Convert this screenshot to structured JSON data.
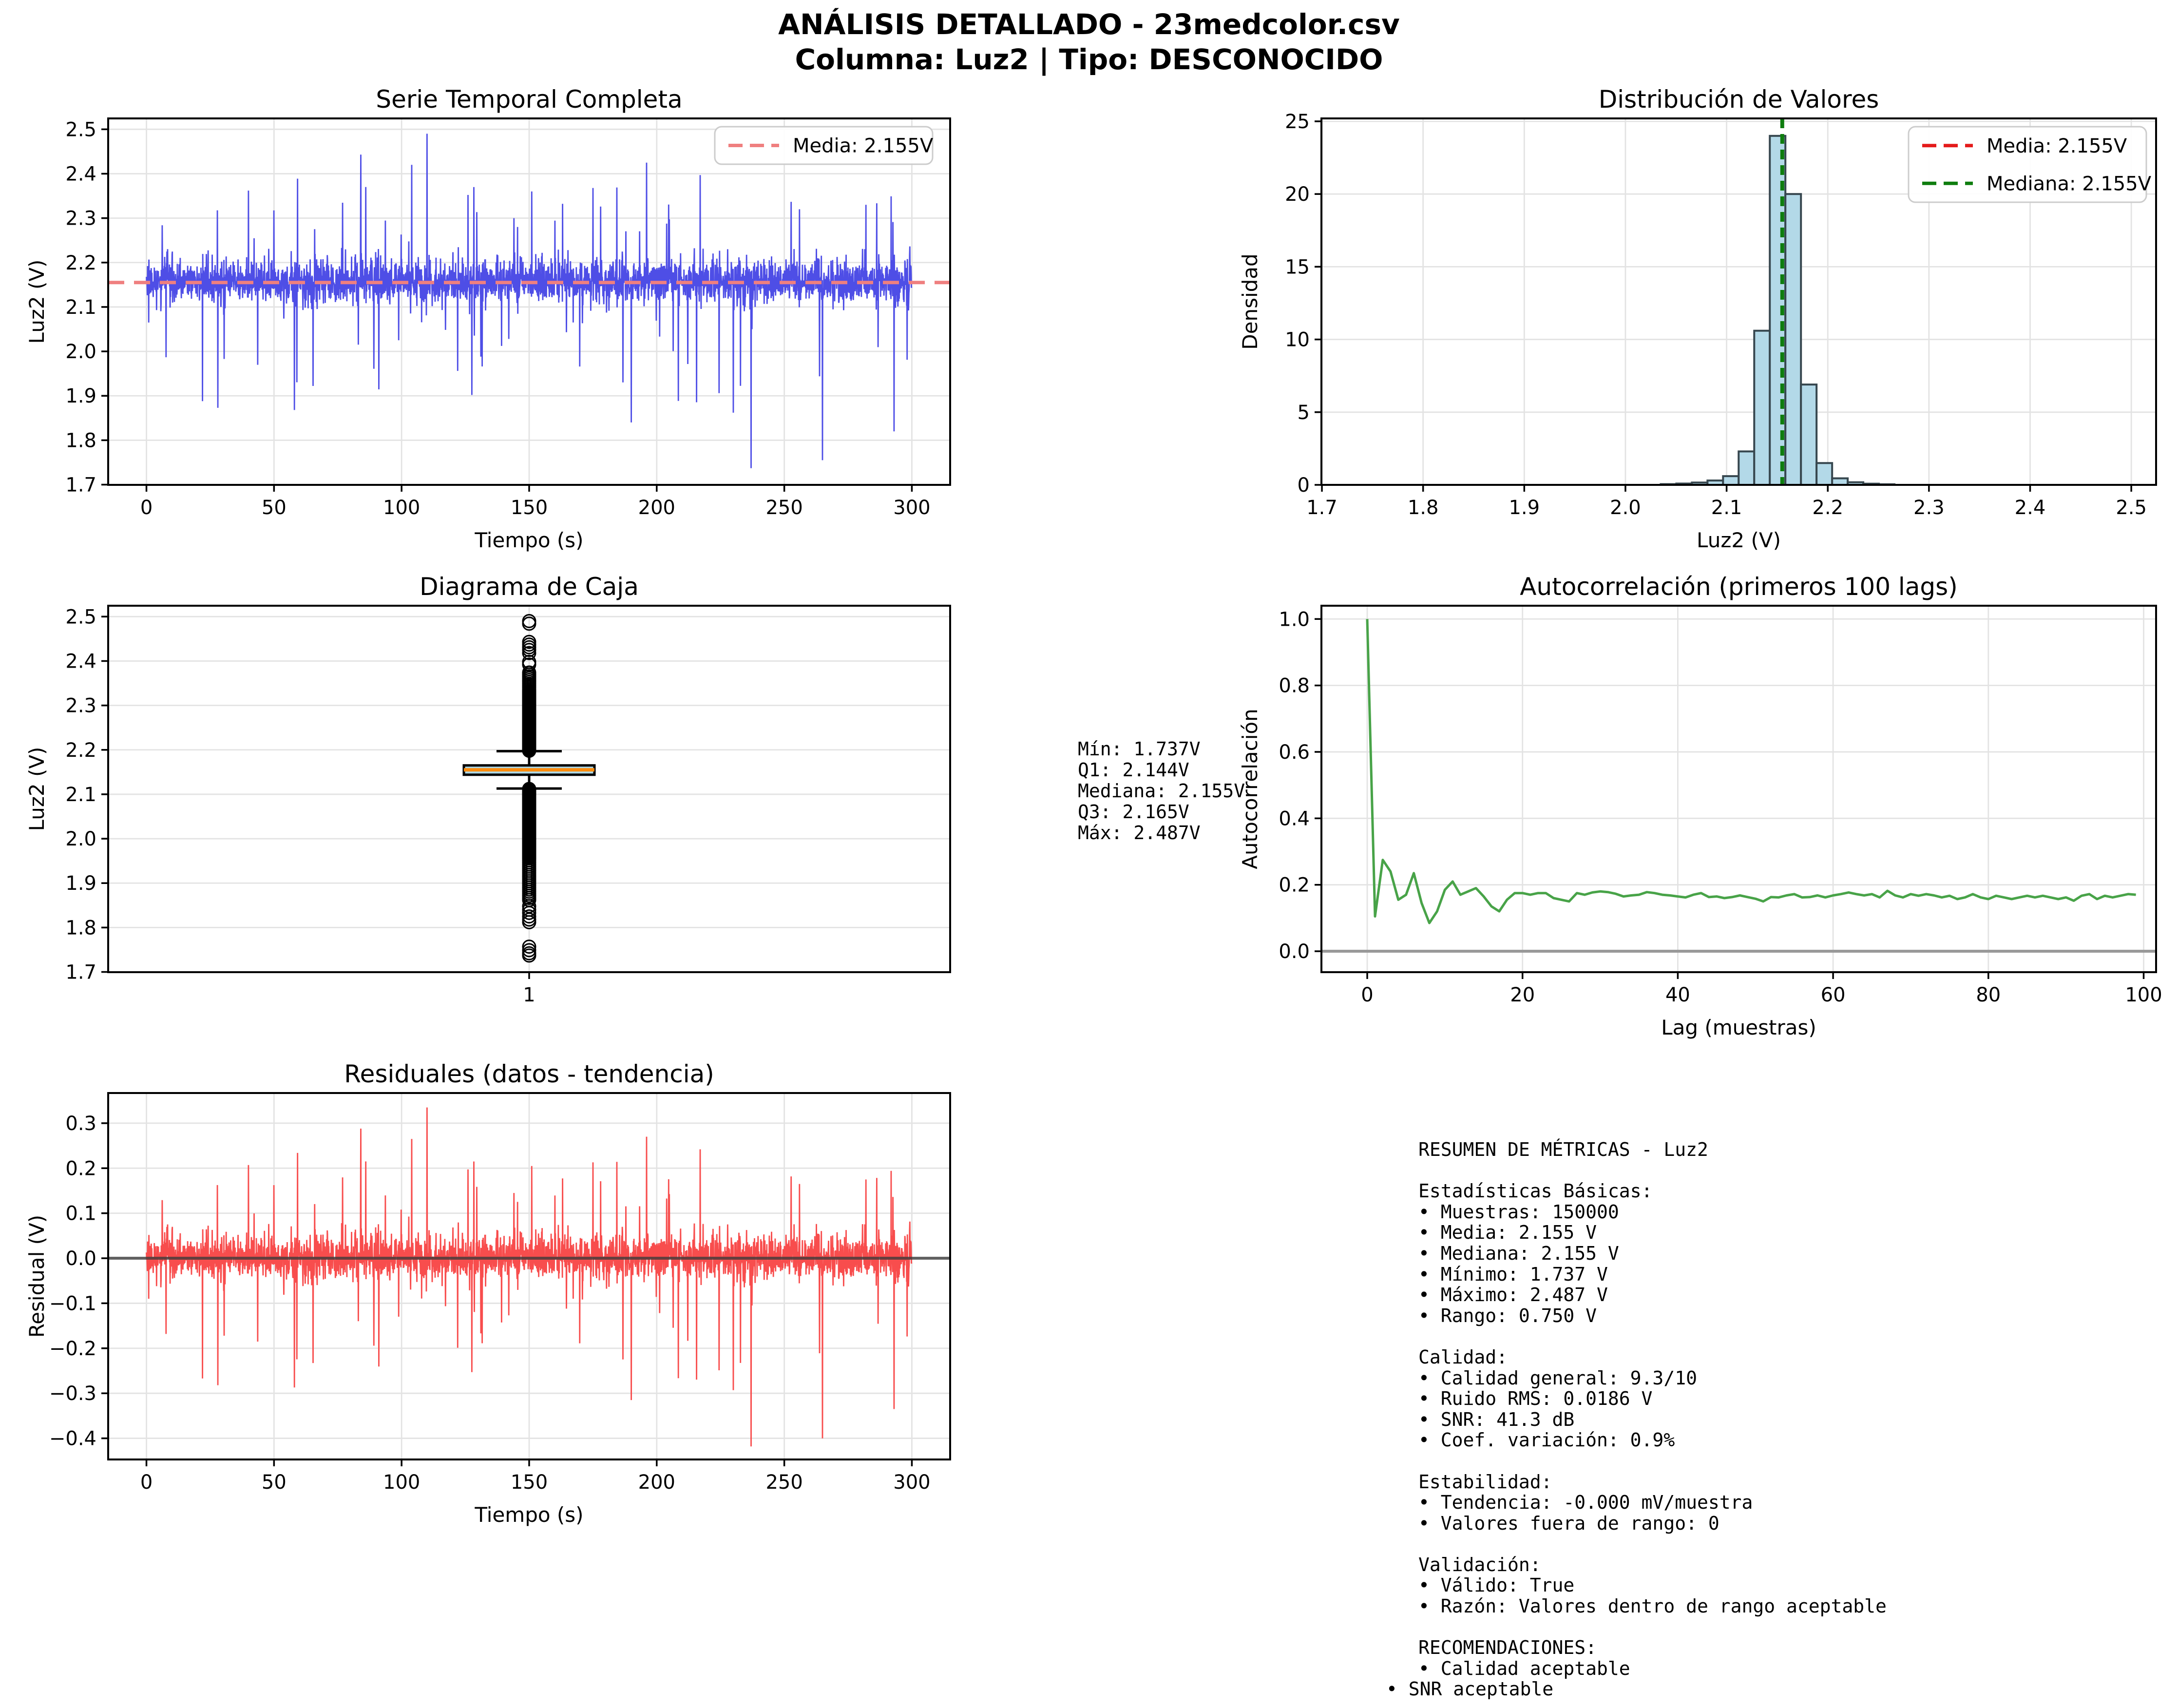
{
  "header": {
    "line1": "ANÁLISIS DETALLADO - 23medcolor.csv",
    "line2": "Columna: Luz2 | Tipo: DESCONOCIDO"
  },
  "colors": {
    "series_blue": "#4e4ee6",
    "mean_line_salmon": "#ef7f7f",
    "legend_red": "#e41a1a",
    "legend_green": "#0e7d0e",
    "hist_fill": "#b3d9e8",
    "hist_edge": "#37474f",
    "box_fill": "#add8e6",
    "box_median_orange": "#fd8d0e",
    "acf_green": "#48a348",
    "resid_red": "#f84d4d",
    "resid_zero": "#3a3a3a",
    "zero_gray": "#999999",
    "grid": "#e3e3e3",
    "black": "#000000",
    "legend_border": "#cccccc"
  },
  "stats_box": {
    "lines": [
      "Mín: 1.737V",
      "Q1: 2.144V",
      "Mediana: 2.155V",
      "Q3: 2.165V",
      "Máx: 2.487V"
    ]
  },
  "metrics_panel": {
    "lines": [
      {
        "text": "RESUMEN DE MÉTRICAS - Luz2"
      },
      {
        "text": ""
      },
      {
        "text": "Estadísticas Básicas:"
      },
      {
        "text": "• Muestras: 150000"
      },
      {
        "text": "• Media: 2.155 V"
      },
      {
        "text": "• Mediana: 2.155 V"
      },
      {
        "text": "• Mínimo: 1.737 V"
      },
      {
        "text": "• Máximo: 2.487 V"
      },
      {
        "text": "• Rango: 0.750 V"
      },
      {
        "text": ""
      },
      {
        "text": "Calidad:"
      },
      {
        "text": "• Calidad general: 9.3/10"
      },
      {
        "text": "• Ruido RMS: 0.0186 V"
      },
      {
        "text": "• SNR: 41.3 dB"
      },
      {
        "text": "• Coef. variación: 0.9%"
      },
      {
        "text": ""
      },
      {
        "text": "Estabilidad:"
      },
      {
        "text": "• Tendencia: -0.000 mV/muestra"
      },
      {
        "text": "• Valores fuera de rango: 0"
      },
      {
        "text": ""
      },
      {
        "text": "Validación:"
      },
      {
        "text": "• Válido: True"
      },
      {
        "text": "• Razón: Valores dentro de rango aceptable"
      },
      {
        "text": ""
      },
      {
        "text": "RECOMENDACIONES:"
      },
      {
        "text": "• Calidad aceptable"
      },
      {
        "text": "• SNR aceptable",
        "outdent": true
      }
    ]
  },
  "chart_data": [
    {
      "id": "serie",
      "type": "line",
      "title": "Serie Temporal Completa",
      "xlabel": "Tiempo (s)",
      "ylabel": "Luz2 (V)",
      "xlim": [
        -15,
        315
      ],
      "ylim": [
        1.6995,
        2.5245
      ],
      "xticks": [
        0,
        50,
        100,
        150,
        200,
        250,
        300
      ],
      "xtick_labels": [
        "0",
        "50",
        "100",
        "150",
        "200",
        "250",
        "300"
      ],
      "yticks": [
        1.7,
        1.8,
        1.9,
        2.0,
        2.1,
        2.2,
        2.3,
        2.4,
        2.5
      ],
      "ytick_labels": [
        "1.7",
        "1.8",
        "1.9",
        "2.0",
        "2.1",
        "2.2",
        "2.3",
        "2.4",
        "2.5"
      ],
      "mean_value": 2.155,
      "legend": [
        {
          "label": "Media: 2.155V",
          "color": "mean_line_salmon",
          "dash": true
        }
      ],
      "signal": {
        "n": 3400,
        "x_max": 300,
        "mean": 2.155,
        "seed": 42,
        "band": [
          2.08,
          2.26
        ],
        "min": 1.737,
        "max": 2.49,
        "features": [
          [
            22,
            1.888
          ],
          [
            28,
            1.873
          ],
          [
            40,
            2.362
          ],
          [
            58,
            1.868
          ],
          [
            84,
            2.443
          ],
          [
            86,
            2.37
          ],
          [
            104,
            2.42
          ],
          [
            110,
            2.49
          ],
          [
            151,
            2.36
          ],
          [
            175,
            2.368
          ],
          [
            190,
            1.84
          ],
          [
            196,
            2.425
          ],
          [
            217,
            2.397
          ],
          [
            230,
            1.862
          ],
          [
            237,
            1.737
          ],
          [
            256,
            2.32
          ],
          [
            265,
            1.755
          ],
          [
            282,
            2.33
          ],
          [
            293,
            1.82
          ]
        ]
      }
    },
    {
      "id": "hist",
      "type": "bar",
      "title": "Distribución de Valores",
      "xlabel": "Luz2 (V)",
      "ylabel": "Densidad",
      "xlim": [
        1.6995,
        2.5245
      ],
      "ylim": [
        0,
        25.2
      ],
      "xticks": [
        1.7,
        1.8,
        1.9,
        2.0,
        2.1,
        2.2,
        2.3,
        2.4,
        2.5
      ],
      "xtick_labels": [
        "1.7",
        "1.8",
        "1.9",
        "2.0",
        "2.1",
        "2.2",
        "2.3",
        "2.4",
        "2.5"
      ],
      "yticks": [
        0,
        5,
        10,
        15,
        20,
        25
      ],
      "ytick_labels": [
        "0",
        "5",
        "10",
        "15",
        "20",
        "25"
      ],
      "bin_width": 0.0154,
      "bins": [
        {
          "x": 2.0349,
          "h": 0.05
        },
        {
          "x": 2.0503,
          "h": 0.09
        },
        {
          "x": 2.0657,
          "h": 0.16
        },
        {
          "x": 2.0811,
          "h": 0.3
        },
        {
          "x": 2.0965,
          "h": 0.6
        },
        {
          "x": 2.1119,
          "h": 2.3
        },
        {
          "x": 2.1273,
          "h": 10.6
        },
        {
          "x": 2.1427,
          "h": 24.0
        },
        {
          "x": 2.1581,
          "h": 20.0
        },
        {
          "x": 2.1735,
          "h": 6.9
        },
        {
          "x": 2.1889,
          "h": 1.5
        },
        {
          "x": 2.2043,
          "h": 0.45
        },
        {
          "x": 2.2197,
          "h": 0.18
        },
        {
          "x": 2.2351,
          "h": 0.08
        },
        {
          "x": 2.2505,
          "h": 0.04
        }
      ],
      "mean_value": 2.155,
      "median_value": 2.155,
      "legend": [
        {
          "label": "Media: 2.155V",
          "color": "legend_red",
          "dash": true
        },
        {
          "label": "Mediana: 2.155V",
          "color": "legend_green",
          "dash": true
        }
      ]
    },
    {
      "id": "caja",
      "type": "box",
      "title": "Diagrama de Caja",
      "xlabel": "",
      "ylabel": "Luz2 (V)",
      "xlim": [
        0,
        2
      ],
      "ylim": [
        1.6995,
        2.5245
      ],
      "xticks": [
        1
      ],
      "xtick_labels": [
        "1"
      ],
      "yticks": [
        1.7,
        1.8,
        1.9,
        2.0,
        2.1,
        2.2,
        2.3,
        2.4,
        2.5
      ],
      "ytick_labels": [
        "1.7",
        "1.8",
        "1.9",
        "2.0",
        "2.1",
        "2.2",
        "2.3",
        "2.4",
        "2.5"
      ],
      "stats": {
        "min": 1.737,
        "q1": 2.144,
        "med": 2.155,
        "q3": 2.165,
        "max": 2.487,
        "whisker_low": 2.113,
        "whisker_high": 2.197
      },
      "outliers": {
        "upper_dense": [
          2.198,
          2.332,
          0.0013
        ],
        "upper_mid": [
          2.332,
          2.378,
          0.0042
        ],
        "upper_sparse": [
          2.392,
          2.398,
          2.418,
          2.425,
          2.431,
          2.437,
          2.443
        ],
        "upper_top": [
          2.484,
          2.49
        ],
        "lower_dense": [
          1.956,
          2.112,
          0.0013
        ],
        "lower_mid": [
          1.862,
          1.956,
          0.0047
        ],
        "lower_sparse": [
          1.848,
          1.84,
          1.833,
          1.825,
          1.818,
          1.812
        ],
        "lower_bottom": [
          1.757,
          1.749,
          1.742,
          1.737
        ]
      }
    },
    {
      "id": "acf",
      "type": "line",
      "title": "Autocorrelación (primeros 100 lags)",
      "xlabel": "Lag (muestras)",
      "ylabel": "Autocorrelación",
      "xlim": [
        -5.9,
        101.6
      ],
      "ylim": [
        -0.063,
        1.04
      ],
      "xticks": [
        0,
        20,
        40,
        60,
        80,
        100
      ],
      "xtick_labels": [
        "0",
        "20",
        "40",
        "60",
        "80",
        "100"
      ],
      "yticks": [
        0.0,
        0.2,
        0.4,
        0.6,
        0.8,
        1.0
      ],
      "ytick_labels": [
        "0.0",
        "0.2",
        "0.4",
        "0.6",
        "0.8",
        "1.0"
      ],
      "zero_line": true,
      "values": [
        1.0,
        0.105,
        0.275,
        0.24,
        0.155,
        0.17,
        0.235,
        0.145,
        0.085,
        0.12,
        0.185,
        0.21,
        0.17,
        0.18,
        0.19,
        0.165,
        0.135,
        0.12,
        0.155,
        0.175,
        0.175,
        0.17,
        0.175,
        0.175,
        0.16,
        0.155,
        0.15,
        0.175,
        0.17,
        0.177,
        0.18,
        0.178,
        0.173,
        0.165,
        0.168,
        0.17,
        0.178,
        0.175,
        0.17,
        0.168,
        0.165,
        0.162,
        0.17,
        0.175,
        0.163,
        0.165,
        0.16,
        0.163,
        0.168,
        0.163,
        0.158,
        0.15,
        0.163,
        0.162,
        0.168,
        0.172,
        0.162,
        0.163,
        0.168,
        0.162,
        0.168,
        0.172,
        0.177,
        0.172,
        0.168,
        0.172,
        0.162,
        0.182,
        0.168,
        0.162,
        0.172,
        0.167,
        0.172,
        0.168,
        0.162,
        0.167,
        0.157,
        0.162,
        0.172,
        0.162,
        0.157,
        0.167,
        0.162,
        0.157,
        0.162,
        0.167,
        0.162,
        0.167,
        0.162,
        0.157,
        0.162,
        0.152,
        0.167,
        0.172,
        0.157,
        0.167,
        0.162,
        0.167,
        0.172,
        0.17
      ]
    },
    {
      "id": "resid",
      "type": "line",
      "title": "Residuales (datos - tendencia)",
      "xlabel": "Tiempo (s)",
      "ylabel": "Residual (V)",
      "xlim": [
        -15,
        315
      ],
      "ylim": [
        -0.447,
        0.367
      ],
      "xticks": [
        0,
        50,
        100,
        150,
        200,
        250,
        300
      ],
      "xtick_labels": [
        "0",
        "50",
        "100",
        "150",
        "200",
        "250",
        "300"
      ],
      "yticks": [
        -0.4,
        -0.3,
        -0.2,
        -0.1,
        0.0,
        0.1,
        0.2,
        0.3
      ],
      "ytick_labels": [
        "−0.4",
        "−0.3",
        "−0.2",
        "−0.1",
        "0.0",
        "0.1",
        "0.2",
        "0.3"
      ],
      "zero_line": true,
      "signal": {
        "derived_from": "serie",
        "offset": 2.155,
        "min": -0.41,
        "max": 0.33
      }
    }
  ]
}
